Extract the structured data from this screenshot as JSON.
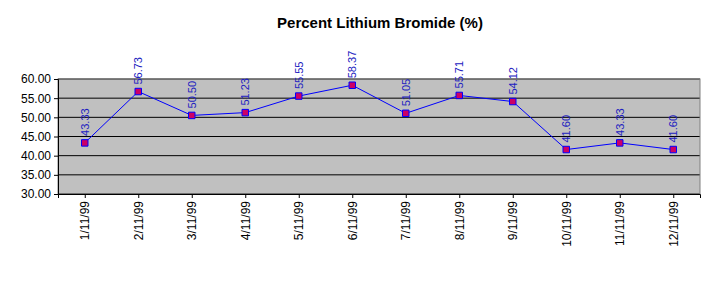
{
  "chart_data": {
    "type": "line",
    "title": "Percent Lithium Bromide (%)",
    "categories": [
      "1/11/99",
      "2/11/99",
      "3/11/99",
      "4/11/99",
      "5/11/99",
      "6/11/99",
      "7/11/99",
      "8/11/99",
      "9/11/99",
      "10/11/99",
      "11/11/99",
      "12/11/99"
    ],
    "values": [
      43.33,
      56.73,
      50.5,
      51.23,
      55.55,
      58.37,
      51.05,
      55.71,
      54.12,
      41.6,
      43.33,
      41.6
    ],
    "value_labels": [
      "43.33",
      "56.73",
      "50.50",
      "51.23",
      "55.55",
      "58.37",
      "51.05",
      "55.71",
      "54.12",
      "41.60",
      "43.33",
      "41.60"
    ],
    "color": "#0000ff",
    "marker": "square",
    "data_labels": true,
    "grid": true,
    "ylim": [
      30,
      60
    ],
    "yticks": [
      {
        "value": 30,
        "label": "30.00"
      },
      {
        "value": 35,
        "label": "35.00"
      },
      {
        "value": 40,
        "label": "40.00"
      },
      {
        "value": 45,
        "label": "45.00"
      },
      {
        "value": 50,
        "label": "50.00"
      },
      {
        "value": 55,
        "label": "55.00"
      },
      {
        "value": 60,
        "label": "60.00"
      }
    ]
  }
}
